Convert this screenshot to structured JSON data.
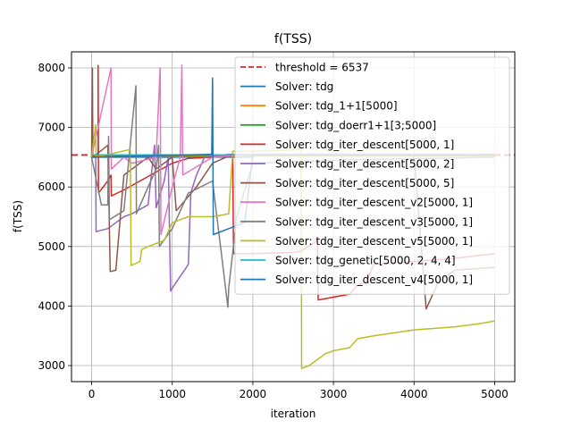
{
  "chart_data": {
    "type": "line",
    "title": "f(TSS)",
    "xlabel": "iteration",
    "ylabel": "f(TSS)",
    "xlim": [
      -250,
      5250
    ],
    "ylim": [
      2730,
      8270
    ],
    "xticks": [
      0,
      1000,
      2000,
      3000,
      4000,
      5000
    ],
    "yticks": [
      3000,
      4000,
      5000,
      6000,
      7000,
      8000
    ],
    "grid": true,
    "legend_position": "top-right",
    "threshold": {
      "name": "threshold = 6537",
      "value": 6537,
      "color": "#d62728",
      "style": "dashed"
    },
    "series": [
      {
        "name": "Solver: tdg",
        "color": "#1f77b4",
        "points": [
          [
            0,
            6500
          ],
          [
            2000,
            6500
          ],
          [
            2000,
            6540
          ],
          [
            5000,
            6540
          ]
        ]
      },
      {
        "name": "Solver: tdg_1+1[5000]",
        "color": "#ff7f0e",
        "points": [
          [
            0,
            6520
          ],
          [
            5000,
            6520
          ]
        ]
      },
      {
        "name": "Solver: tdg_doerr1+1[3;5000]",
        "color": "#2ca02c",
        "points": [
          [
            0,
            6530
          ],
          [
            5000,
            6530
          ]
        ]
      },
      {
        "name": "Solver: tdg_iter_descent[5000, 1]",
        "color": "#d62728",
        "points": [
          [
            0,
            6500
          ],
          [
            80,
            6500
          ],
          [
            80,
            8040
          ],
          [
            85,
            5900
          ],
          [
            200,
            6100
          ],
          [
            240,
            6200
          ],
          [
            245,
            5850
          ],
          [
            400,
            5950
          ],
          [
            600,
            6100
          ],
          [
            800,
            6250
          ],
          [
            1000,
            6400
          ],
          [
            1200,
            6480
          ],
          [
            1500,
            6500
          ],
          [
            1750,
            6520
          ],
          [
            1760,
            4880
          ],
          [
            2000,
            4880
          ],
          [
            2500,
            4900
          ],
          [
            2600,
            4920
          ],
          [
            2800,
            5100
          ],
          [
            2810,
            4100
          ],
          [
            3200,
            4200
          ],
          [
            3300,
            4350
          ],
          [
            3400,
            4400
          ],
          [
            3500,
            4700
          ],
          [
            4000,
            4750
          ],
          [
            4500,
            4800
          ],
          [
            5000,
            4880
          ]
        ]
      },
      {
        "name": "Solver: tdg_iter_descent[5000, 2]",
        "color": "#9467bd",
        "points": [
          [
            0,
            6500
          ],
          [
            50,
            6500
          ],
          [
            55,
            5250
          ],
          [
            200,
            5300
          ],
          [
            400,
            5500
          ],
          [
            500,
            5550
          ],
          [
            700,
            5700
          ],
          [
            780,
            6700
          ],
          [
            800,
            5650
          ],
          [
            900,
            6100
          ],
          [
            950,
            6500
          ],
          [
            980,
            4250
          ],
          [
            1000,
            4300
          ],
          [
            1200,
            4700
          ],
          [
            1230,
            5900
          ],
          [
            1300,
            6200
          ],
          [
            1400,
            6500
          ],
          [
            1500,
            6520
          ],
          [
            1700,
            6550
          ],
          [
            5000,
            6550
          ]
        ]
      },
      {
        "name": "Solver: tdg_iter_descent[5000, 5]",
        "color": "#8c564b",
        "points": [
          [
            0,
            6500
          ],
          [
            10,
            8000
          ],
          [
            15,
            6500
          ],
          [
            200,
            6700
          ],
          [
            230,
            4580
          ],
          [
            300,
            4600
          ],
          [
            400,
            6200
          ],
          [
            500,
            6300
          ],
          [
            700,
            6500
          ],
          [
            800,
            6300
          ],
          [
            1000,
            6500
          ],
          [
            1050,
            5600
          ],
          [
            1300,
            6000
          ],
          [
            1500,
            6400
          ],
          [
            1700,
            6520
          ],
          [
            2000,
            6550
          ],
          [
            2500,
            6550
          ],
          [
            3000,
            6550
          ],
          [
            3500,
            6550
          ],
          [
            4000,
            6550
          ],
          [
            4150,
            3950
          ],
          [
            4300,
            4400
          ],
          [
            4500,
            4600
          ],
          [
            5000,
            4650
          ]
        ]
      },
      {
        "name": "Solver: tdg_iter_descent_v2[5000, 1]",
        "color": "#e377c2",
        "points": [
          [
            0,
            6500
          ],
          [
            240,
            8000
          ],
          [
            245,
            6300
          ],
          [
            400,
            6500
          ],
          [
            500,
            6400
          ],
          [
            800,
            6500
          ],
          [
            850,
            8000
          ],
          [
            860,
            5200
          ],
          [
            1000,
            6000
          ],
          [
            1100,
            6500
          ],
          [
            1120,
            8050
          ],
          [
            1130,
            6200
          ],
          [
            1500,
            6500
          ],
          [
            2000,
            6550
          ],
          [
            5000,
            6550
          ]
        ]
      },
      {
        "name": "Solver: tdg_iter_descent_v3[5000, 1]",
        "color": "#7f7f7f",
        "points": [
          [
            0,
            6500
          ],
          [
            120,
            5700
          ],
          [
            200,
            5700
          ],
          [
            210,
            6850
          ],
          [
            220,
            5450
          ],
          [
            400,
            5600
          ],
          [
            550,
            7700
          ],
          [
            555,
            5550
          ],
          [
            700,
            6000
          ],
          [
            800,
            6300
          ],
          [
            830,
            6700
          ],
          [
            840,
            5000
          ],
          [
            1000,
            5300
          ],
          [
            1200,
            5900
          ],
          [
            1500,
            6100
          ],
          [
            1690,
            3980
          ],
          [
            1700,
            4300
          ],
          [
            1800,
            5500
          ],
          [
            2000,
            6400
          ],
          [
            3000,
            6450
          ],
          [
            5000,
            6500
          ]
        ]
      },
      {
        "name": "Solver: tdg_iter_descent_v5[5000, 1]",
        "color": "#bcbd22",
        "points": [
          [
            0,
            6500
          ],
          [
            50,
            7050
          ],
          [
            55,
            6500
          ],
          [
            480,
            6630
          ],
          [
            490,
            4680
          ],
          [
            600,
            4750
          ],
          [
            620,
            4950
          ],
          [
            700,
            5000
          ],
          [
            800,
            5050
          ],
          [
            900,
            5100
          ],
          [
            1000,
            5400
          ],
          [
            1100,
            5450
          ],
          [
            1200,
            5500
          ],
          [
            1500,
            5500
          ],
          [
            1700,
            5550
          ],
          [
            1750,
            6600
          ],
          [
            2000,
            6600
          ],
          [
            2500,
            6620
          ],
          [
            2600,
            6640
          ],
          [
            2605,
            2950
          ],
          [
            2700,
            3000
          ],
          [
            2800,
            3100
          ],
          [
            2900,
            3200
          ],
          [
            3000,
            3250
          ],
          [
            3200,
            3300
          ],
          [
            3300,
            3450
          ],
          [
            3500,
            3500
          ],
          [
            4000,
            3600
          ],
          [
            4500,
            3650
          ],
          [
            4800,
            3700
          ],
          [
            5000,
            3750
          ]
        ]
      },
      {
        "name": "Solver: tdg_genetic[5000, 2, 4, 4]",
        "color": "#17becf",
        "points": [
          [
            0,
            6540
          ],
          [
            5000,
            6540
          ]
        ]
      },
      {
        "name": "Solver: tdg_iter_descent_v4[5000, 1]",
        "color": "#1f77b4",
        "points": [
          [
            0,
            6500
          ],
          [
            1490,
            6550
          ],
          [
            1500,
            7830
          ],
          [
            1510,
            5200
          ],
          [
            1700,
            5300
          ],
          [
            1800,
            5350
          ],
          [
            1900,
            5400
          ],
          [
            2000,
            6540
          ],
          [
            5000,
            6540
          ]
        ]
      }
    ]
  }
}
